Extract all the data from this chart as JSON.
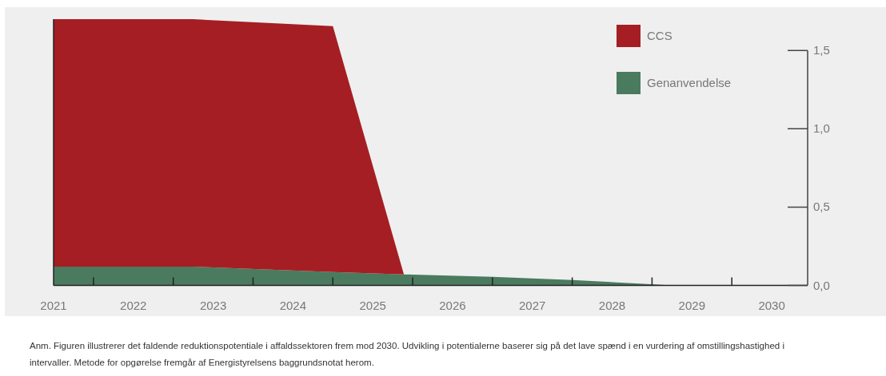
{
  "chart_data": {
    "type": "area",
    "stacked": true,
    "x": [
      2021,
      2022.75,
      2024.5,
      2025.39,
      2026.5,
      2027.5,
      2028.76,
      2030.45
    ],
    "series": [
      {
        "name": "Genanvendelse",
        "color": "#4a7b5f",
        "values": [
          0.12,
          0.12,
          0.085,
          0.07,
          0.055,
          0.035,
          0,
          0
        ]
      },
      {
        "name": "CCS",
        "color": "#a51e23",
        "values": [
          1.58,
          1.58,
          1.57,
          0,
          0,
          0,
          0,
          0
        ]
      }
    ],
    "xlim": [
      2021,
      2030.45
    ],
    "xticks": [
      2021,
      2022,
      2023,
      2024,
      2025,
      2026,
      2027,
      2028,
      2029,
      2030,
      {
        "value": 2021.5,
        "label": null
      },
      {
        "value": 2022.5,
        "label": null
      },
      {
        "value": 2023.5,
        "label": null
      },
      {
        "value": 2024.5,
        "label": null
      },
      {
        "value": 2025.5,
        "label": null
      },
      {
        "value": 2026.5,
        "label": null
      },
      {
        "value": 2027.5,
        "label": null
      },
      {
        "value": 2028.5,
        "label": null
      },
      {
        "value": 2029.5,
        "label": null
      }
    ],
    "ylim": [
      0,
      1.7
    ],
    "yticks": [
      {
        "value": 0,
        "label": "0,0"
      },
      {
        "value": 0.5,
        "label": "0,5"
      },
      {
        "value": 1,
        "label": "1,0"
      },
      {
        "value": 1.5,
        "label": "1,5"
      }
    ],
    "legend": "top right",
    "annotations": [
      "Anm.  Figuren illustrerer det faldende reduktionspotentiale i affaldssektoren frem mod 2030. Udvikling i potentialerne baserer sig på det lave spænd i en vurdering af omstillingshastighed i intervaller. Metode for opgørelse fremgår af Energistyrelsens baggrundsnotat herom."
    ]
  }
}
